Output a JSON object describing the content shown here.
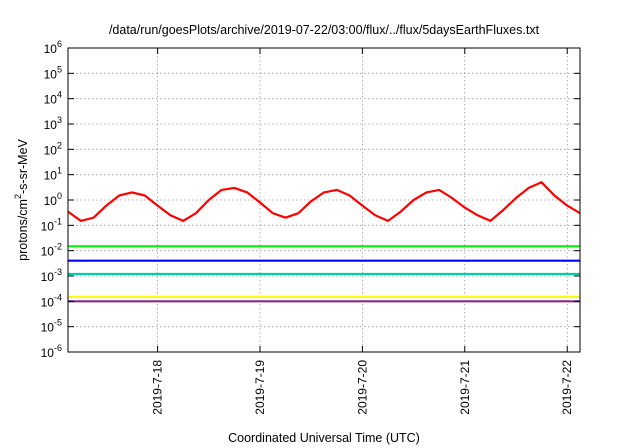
{
  "chart_data": {
    "type": "line",
    "title": "/data/run/goesPlots/archive/2019-07-22/03:00/flux/../flux/5daysEarthFluxes.txt",
    "xlabel": "Coordinated Universal Time (UTC)",
    "ylabel": "protons/cm2-s-sr-MeV",
    "yscale": "log",
    "ylim": [
      1e-06,
      1000000.0
    ],
    "y_ticks": [
      {
        "value": 1e-06,
        "base": "10",
        "exp": "-6"
      },
      {
        "value": 1e-05,
        "base": "10",
        "exp": "-5"
      },
      {
        "value": 0.0001,
        "base": "10",
        "exp": "-4"
      },
      {
        "value": 0.001,
        "base": "10",
        "exp": "-3"
      },
      {
        "value": 0.01,
        "base": "10",
        "exp": "-2"
      },
      {
        "value": 0.1,
        "base": "10",
        "exp": "-1"
      },
      {
        "value": 1,
        "base": "10",
        "exp": "0"
      },
      {
        "value": 10,
        "base": "10",
        "exp": "1"
      },
      {
        "value": 100,
        "base": "10",
        "exp": "2"
      },
      {
        "value": 1000.0,
        "base": "10",
        "exp": "3"
      },
      {
        "value": 10000.0,
        "base": "10",
        "exp": "4"
      },
      {
        "value": 100000.0,
        "base": "10",
        "exp": "5"
      },
      {
        "value": 1000000.0,
        "base": "10",
        "exp": "6"
      }
    ],
    "xlim": [
      "2019-07-17 03:00",
      "2019-07-22 03:00"
    ],
    "x_ticks": [
      {
        "value": "2019-07-18 00:00",
        "label": "2019-7-18"
      },
      {
        "value": "2019-07-19 00:00",
        "label": "2019-7-19"
      },
      {
        "value": "2019-07-20 00:00",
        "label": "2019-7-20"
      },
      {
        "value": "2019-07-21 00:00",
        "label": "2019-7-21"
      },
      {
        "value": "2019-07-22 00:00",
        "label": "2019-7-22"
      }
    ],
    "grid": true,
    "series": [
      {
        "color": "#ff0000",
        "x": [
          "2019-07-17 03:00",
          "2019-07-17 06:00",
          "2019-07-17 09:00",
          "2019-07-17 12:00",
          "2019-07-17 15:00",
          "2019-07-17 18:00",
          "2019-07-17 21:00",
          "2019-07-18 00:00",
          "2019-07-18 03:00",
          "2019-07-18 06:00",
          "2019-07-18 09:00",
          "2019-07-18 12:00",
          "2019-07-18 15:00",
          "2019-07-18 18:00",
          "2019-07-18 21:00",
          "2019-07-19 00:00",
          "2019-07-19 03:00",
          "2019-07-19 06:00",
          "2019-07-19 09:00",
          "2019-07-19 12:00",
          "2019-07-19 15:00",
          "2019-07-19 18:00",
          "2019-07-19 21:00",
          "2019-07-20 00:00",
          "2019-07-20 03:00",
          "2019-07-20 06:00",
          "2019-07-20 09:00",
          "2019-07-20 12:00",
          "2019-07-20 15:00",
          "2019-07-20 18:00",
          "2019-07-20 21:00",
          "2019-07-21 00:00",
          "2019-07-21 03:00",
          "2019-07-21 06:00",
          "2019-07-21 09:00",
          "2019-07-21 12:00",
          "2019-07-21 15:00",
          "2019-07-21 18:00",
          "2019-07-21 21:00",
          "2019-07-22 00:00",
          "2019-07-22 03:00"
        ],
        "y": [
          0.35,
          0.15,
          0.2,
          0.6,
          1.5,
          2,
          1.5,
          0.6,
          0.25,
          0.15,
          0.3,
          1.0,
          2.5,
          3,
          2.0,
          0.8,
          0.3,
          0.2,
          0.3,
          0.9,
          2.0,
          2.5,
          1.5,
          0.6,
          0.25,
          0.15,
          0.35,
          1.0,
          2.0,
          2.5,
          1.2,
          0.5,
          0.25,
          0.15,
          0.4,
          1.2,
          3,
          5,
          1.5,
          0.6,
          0.3
        ]
      },
      {
        "color": "#00ff00",
        "x": [
          "2019-07-17 03:00",
          "2019-07-22 03:00"
        ],
        "y": [
          0.015,
          0.015
        ]
      },
      {
        "color": "#0000ff",
        "x": [
          "2019-07-17 03:00",
          "2019-07-22 03:00"
        ],
        "y": [
          0.004,
          0.004
        ]
      },
      {
        "color": "#00ccaa",
        "x": [
          "2019-07-17 03:00",
          "2019-07-22 03:00"
        ],
        "y": [
          0.0012,
          0.0012
        ]
      },
      {
        "color": "#ffff00",
        "x": [
          "2019-07-17 03:00",
          "2019-07-22 03:00"
        ],
        "y": [
          0.00015,
          0.00015
        ]
      },
      {
        "color": "#8b2a7a",
        "x": [
          "2019-07-17 03:00",
          "2019-07-22 03:00"
        ],
        "y": [
          0.0001,
          0.0001
        ]
      }
    ]
  }
}
